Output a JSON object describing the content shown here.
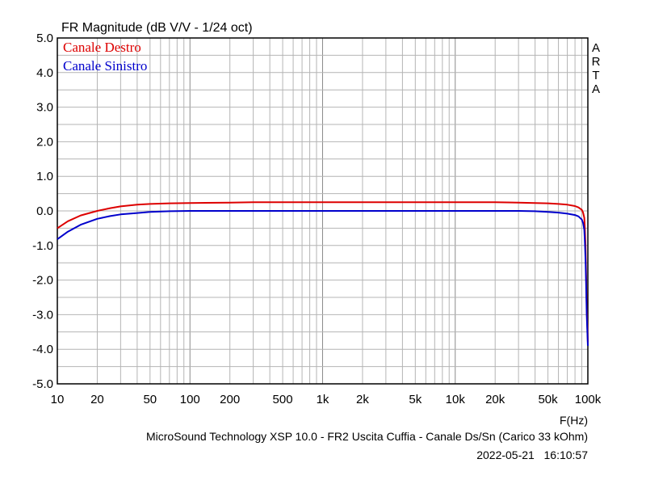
{
  "chart_data": {
    "type": "line",
    "title": "FR Magnitude (dB V/V - 1/24 oct)",
    "xlabel": "F(Hz)",
    "x_scale": "log",
    "xlim": [
      10,
      100000
    ],
    "ylim": [
      -5.0,
      5.0
    ],
    "grid": true,
    "legend_position": "top-left",
    "side_label": [
      "A",
      "R",
      "T",
      "A"
    ],
    "caption": "MicroSound Technology XSP 10.0 - FR2 Uscita Cuffia - Canale Ds/Sn (Carico 33 kOhm)",
    "timestamp": "2022-05-21   16:10:57",
    "x_ticks": [
      {
        "value": 10,
        "label": "10"
      },
      {
        "value": 20,
        "label": "20"
      },
      {
        "value": 50,
        "label": "50"
      },
      {
        "value": 100,
        "label": "100"
      },
      {
        "value": 200,
        "label": "200"
      },
      {
        "value": 500,
        "label": "500"
      },
      {
        "value": 1000,
        "label": "1k"
      },
      {
        "value": 2000,
        "label": "2k"
      },
      {
        "value": 5000,
        "label": "5k"
      },
      {
        "value": 10000,
        "label": "10k"
      },
      {
        "value": 20000,
        "label": "20k"
      },
      {
        "value": 50000,
        "label": "50k"
      },
      {
        "value": 100000,
        "label": "100k"
      }
    ],
    "y_ticks": [
      {
        "value": 5,
        "label": "5.0"
      },
      {
        "value": 4,
        "label": "4.0"
      },
      {
        "value": 3,
        "label": "3.0"
      },
      {
        "value": 2,
        "label": "2.0"
      },
      {
        "value": 1,
        "label": "1.0"
      },
      {
        "value": 0,
        "label": "0.0"
      },
      {
        "value": -1,
        "label": "-1.0"
      },
      {
        "value": -2,
        "label": "-2.0"
      },
      {
        "value": -3,
        "label": "-3.0"
      },
      {
        "value": -4,
        "label": "-4.0"
      },
      {
        "value": -5,
        "label": "-5.0"
      }
    ],
    "series": [
      {
        "name": "Canale Destro",
        "color": "#dd0000",
        "x": [
          10,
          12,
          15,
          20,
          25,
          30,
          40,
          50,
          70,
          100,
          200,
          300,
          500,
          1000,
          2000,
          5000,
          10000,
          20000,
          30000,
          40000,
          50000,
          60000,
          70000,
          80000,
          85000,
          90000,
          92000,
          94000,
          95000,
          96000,
          97000,
          98000,
          100000
        ],
        "y": [
          -0.5,
          -0.3,
          -0.13,
          0.0,
          0.08,
          0.13,
          0.18,
          0.2,
          0.22,
          0.23,
          0.24,
          0.25,
          0.25,
          0.25,
          0.25,
          0.25,
          0.25,
          0.25,
          0.24,
          0.23,
          0.22,
          0.2,
          0.18,
          0.14,
          0.1,
          0.03,
          -0.05,
          -0.2,
          -0.5,
          -1.0,
          -1.8,
          -2.8,
          -3.8
        ]
      },
      {
        "name": "Canale Sinistro",
        "color": "#0000cc",
        "x": [
          10,
          12,
          15,
          20,
          25,
          30,
          40,
          50,
          70,
          100,
          200,
          500,
          1000,
          5000,
          10000,
          20000,
          30000,
          40000,
          50000,
          60000,
          70000,
          80000,
          85000,
          90000,
          92000,
          94000,
          95000,
          96000,
          97000,
          98000,
          100000
        ],
        "y": [
          -0.82,
          -0.6,
          -0.4,
          -0.23,
          -0.15,
          -0.1,
          -0.06,
          -0.03,
          -0.01,
          0.0,
          0.0,
          0.0,
          0.0,
          0.0,
          0.0,
          0.0,
          0.0,
          -0.01,
          -0.03,
          -0.05,
          -0.08,
          -0.12,
          -0.16,
          -0.25,
          -0.35,
          -0.55,
          -0.9,
          -1.4,
          -2.1,
          -3.0,
          -3.9
        ]
      }
    ]
  }
}
